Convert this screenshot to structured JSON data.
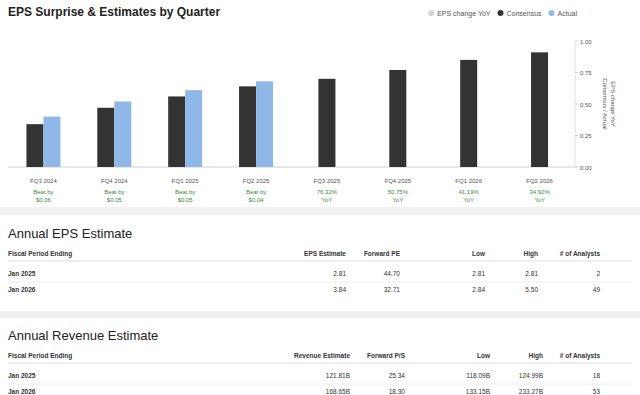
{
  "chart_data": {
    "type": "bar",
    "title": "EPS Surprise & Estimates by Quarter",
    "categories": [
      "FQ3 2024",
      "FQ4 2024",
      "FQ1 2025",
      "FQ2 2025",
      "FQ3 2025",
      "FQ4 2025",
      "FQ1 2026",
      "FQ2 2026"
    ],
    "series": [
      {
        "name": "EPS change YoY",
        "color": "#d4d4d4",
        "values": [
          null,
          null,
          null,
          null,
          null,
          null,
          null,
          null
        ]
      },
      {
        "name": "Consensus",
        "color": "#333333",
        "values": [
          0.34,
          0.47,
          0.56,
          0.64,
          0.7,
          0.77,
          0.85,
          0.91
        ]
      },
      {
        "name": "Actual",
        "color": "#8fb8e8",
        "values": [
          0.4,
          0.52,
          0.61,
          0.68,
          null,
          null,
          null,
          null
        ]
      }
    ],
    "ylabel": [
      "EPS change YoY",
      "Consensus / Actual"
    ],
    "ylim": [
      0,
      1
    ],
    "yticks": [
      {
        "value": 0,
        "label": "0.00"
      },
      {
        "value": 0.25,
        "label": "0.25"
      },
      {
        "value": 0.5,
        "label": "0.50"
      },
      {
        "value": 0.75,
        "label": "0.75"
      },
      {
        "value": 1,
        "label": "1.00"
      }
    ],
    "grid": false,
    "legend": "top-right",
    "annotations": [
      {
        "text": [
          "Beat by",
          "$0.06"
        ],
        "color": "#3b8a3b"
      },
      {
        "text": [
          "Beat by",
          "$0.05"
        ],
        "color": "#3b8a3b"
      },
      {
        "text": [
          "Beat by",
          "$0.05"
        ],
        "color": "#3b8a3b"
      },
      {
        "text": [
          "Beat by",
          "$0.04"
        ],
        "color": "#3b8a3b"
      },
      {
        "text": [
          "76.32%",
          "YoY"
        ],
        "color": "#3b8a3b"
      },
      {
        "text": [
          "50.75%",
          "YoY"
        ],
        "color": "#3b8a3b"
      },
      {
        "text": [
          "41.19%",
          "YoY"
        ],
        "color": "#3b8a3b"
      },
      {
        "text": [
          "34.92%",
          "YoY"
        ],
        "color": "#3b8a3b"
      }
    ]
  },
  "tables": [
    {
      "title": "Annual EPS Estimate",
      "columns": [
        "Fiscal Period Ending",
        "EPS Estimate",
        "Forward PE",
        "Low",
        "High",
        "# of Analysts"
      ],
      "rows": [
        [
          "Jan 2025",
          "2.81",
          "44.70",
          "2.81",
          "2.81",
          "2"
        ],
        [
          "Jan 2026",
          "3.84",
          "32.71",
          "2.84",
          "5.50",
          "49"
        ]
      ]
    },
    {
      "title": "Annual Revenue Estimate",
      "columns": [
        "Fiscal Period Ending",
        "Revenue Estimate",
        "Forward P/S",
        "Low",
        "High",
        "# of Analysts"
      ],
      "rows": [
        [
          "Jan 2025",
          "121.81B",
          "25.34",
          "118.09B",
          "124.99B",
          "18"
        ],
        [
          "Jan 2026",
          "168.65B",
          "18.30",
          "133.15B",
          "233.27B",
          "53"
        ]
      ]
    }
  ]
}
